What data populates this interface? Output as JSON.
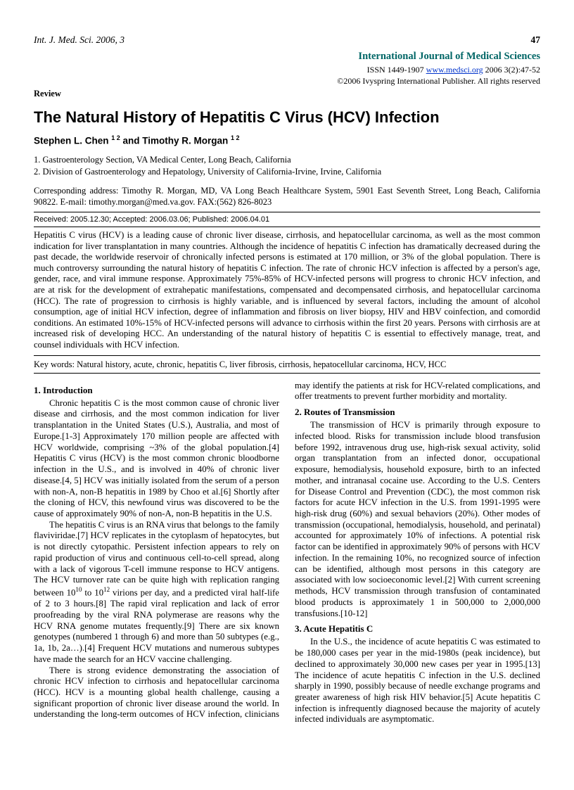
{
  "header": {
    "journal_abbrev": "Int. J. Med. Sci.",
    "year": "2006, 3",
    "page": "47"
  },
  "journal": {
    "title": "International Journal of Medical Sciences",
    "issn_prefix": "ISSN 1449-1907",
    "url": "www.medsci.org",
    "citation": "2006 3(2):47-52",
    "copyright": "©2006 Ivyspring International Publisher. All rights reserved"
  },
  "article": {
    "type": "Review",
    "title": "The Natural History of Hepatitis C Virus (HCV) Infection",
    "authors": "Stephen L. Chen ",
    "authors_sup1": "1 2",
    "authors_mid": " and Timothy R. Morgan ",
    "authors_sup2": "1 2",
    "affiliations": {
      "a1": "1. Gastroenterology Section, VA Medical Center, Long Beach, California",
      "a2": "2. Division of Gastroenterology and Hepatology, University of California-Irvine, Irvine, California"
    },
    "corresponding": "Corresponding address: Timothy R. Morgan, MD, VA Long Beach Healthcare System, 5901 East Seventh Street, Long Beach, California 90822. E-mail: timothy.morgan@med.va.gov. FAX:(562) 826-8023",
    "dates": "Received: 2005.12.30; Accepted: 2006.03.06; Published: 2006.04.01",
    "abstract": "Hepatitis C virus (HCV) is a leading cause of chronic liver disease, cirrhosis, and hepatocellular carcinoma, as well as the most common indication for liver transplantation in many countries. Although the incidence of hepatitis C infection has dramatically decreased during the past decade, the worldwide reservoir of chronically infected persons is estimated at 170 million, or 3% of the global population. There is much controversy surrounding the natural history of hepatitis C infection. The rate of chronic HCV infection is affected by a person's age, gender, race, and viral immune response. Approximately 75%-85% of HCV-infected persons will progress to chronic HCV infection, and are at risk for the development of extrahepatic manifestations, compensated and decompensated cirrhosis, and hepatocellular carcinoma (HCC). The rate of progression to cirrhosis is highly variable, and is influenced by several factors, including the amount of alcohol consumption, age of initial HCV infection, degree of inflammation and fibrosis on liver biopsy, HIV and HBV coinfection, and comordid conditions. An estimated 10%-15% of HCV-infected persons will advance to cirrhosis within the first 20 years. Persons with cirrhosis are at increased risk of developing HCC. An understanding of the natural history of hepatitis C is essential to effectively manage, treat, and counsel individuals with HCV infection.",
    "keywords": "Key words: Natural history, acute, chronic, hepatitis C, liver fibrosis, cirrhosis, hepatocellular carcinoma, HCV, HCC"
  },
  "sections": {
    "s1_head": "1.   Introduction",
    "s1_p1": "Chronic hepatitis C is the most common cause of chronic liver disease and cirrhosis, and the most common indication for liver transplantation in the United States (U.S.), Australia, and most of Europe.[1-3] Approximately 170 million people are affected with HCV worldwide, comprising ~3% of the global population.[4] Hepatitis C virus (HCV) is the most common chronic bloodborne infection in the U.S., and is involved in 40% of chronic liver disease.[4, 5] HCV was initially isolated from the serum of a person with non-A, non-B hepatitis in 1989 by Choo et al.[6] Shortly after the cloning of HCV, this newfound virus was discovered to be the cause of approximately 90% of non-A, non-B hepatitis in the U.S.",
    "s1_p2a": "The hepatitis C virus is an RNA virus that belongs to the family flaviviridae.[7] HCV replicates in the cytoplasm of hepatocytes, but is not directly cytopathic. Persistent infection appears to rely on rapid production of virus and continuous cell-to-cell spread, along with a lack of vigorous T-cell immune response to HCV antigens. The HCV turnover rate can be quite high with replication ranging between 10",
    "s1_p2_sup1": "10",
    "s1_p2b": " to 10",
    "s1_p2_sup2": "12",
    "s1_p2c": " virions per day, and a predicted viral half-life of 2 to 3 hours.[8] The rapid viral replication and lack of error proofreading by the viral RNA polymerase are reasons why the HCV RNA genome mutates frequently.[9] There are six known genotypes (numbered 1 through 6) and more than 50 subtypes (e.g., 1a, 1b, 2a…).[4] Frequent HCV mutations and numerous subtypes have made the search for an HCV vaccine challenging.",
    "s1_p3": "There is strong evidence demonstrating the association of chronic HCV infection to cirrhosis and hepatocellular carcinoma (HCC). HCV is a mounting global health challenge, causing a significant proportion of chronic liver disease around the world. In understanding the long-term outcomes of HCV infection, clinicians may identify the patients at risk for HCV-related complications, and offer treatments to prevent further morbidity and mortality.",
    "s2_head": "2.   Routes of Transmission",
    "s2_p1": "The transmission of HCV is primarily through exposure to infected blood. Risks for transmission include blood transfusion before 1992, intravenous drug use, high-risk sexual activity, solid organ transplantation from an infected donor, occupational exposure, hemodialysis, household exposure, birth to an infected mother, and intranasal cocaine use. According to the U.S. Centers for Disease Control and Prevention (CDC), the most common risk factors for acute HCV infection in the U.S. from 1991-1995 were high-risk drug (60%) and sexual behaviors (20%). Other modes of transmission (occupational, hemodialysis, household, and perinatal) accounted for approximately 10% of infections. A potential risk factor can be identified in approximately 90% of persons with HCV infection. In the remaining 10%, no recognized source of infection can be identified, although most persons in this category are associated with low socioeconomic level.[2] With current screening methods, HCV transmission through transfusion of contaminated blood products is approximately 1 in 500,000 to 2,000,000 transfusions.[10-12]",
    "s3_head": "3.   Acute Hepatitis C",
    "s3_p1": "In the U.S., the incidence of acute hepatitis C was estimated to be 180,000 cases per year in the mid-1980s (peak incidence), but declined to approximately 30,000 new cases per year in 1995.[13] The incidence of acute hepatitis C infection in the U.S. declined sharply in 1990, possibly because of needle exchange programs and greater awareness of high risk HIV behavior.[5] Acute hepatitis C infection is infrequently diagnosed because the majority of acutely infected individuals are asymptomatic."
  },
  "colors": {
    "teal": "#006666",
    "link": "#0033cc",
    "text": "#000000",
    "bg": "#ffffff"
  }
}
